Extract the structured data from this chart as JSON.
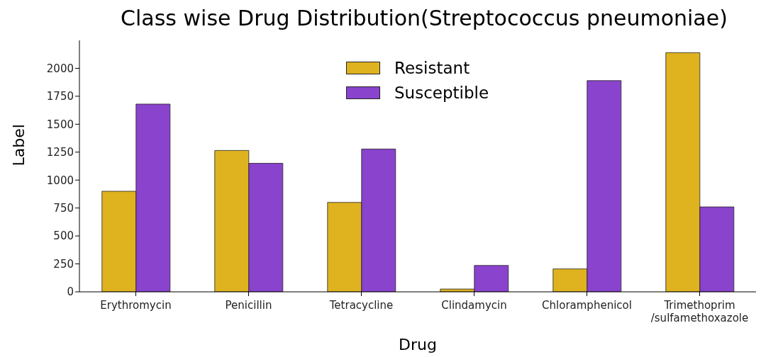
{
  "chart_data": {
    "type": "bar",
    "title": "Class wise Drug Distribution(Streptococcus pneumoniae)",
    "xlabel": "Drug",
    "ylabel": "Label",
    "categories": [
      "Erythromycin",
      "Penicillin",
      "Tetracycline",
      "Clindamycin",
      "Chloramphenicol",
      "Trimethoprim\n/sulfamethoxazole"
    ],
    "series": [
      {
        "name": "Resistant",
        "color": "#dfb31f",
        "values": [
          900,
          1265,
          800,
          25,
          205,
          2140
        ]
      },
      {
        "name": "Susceptible",
        "color": "#8a43cc",
        "values": [
          1680,
          1150,
          1278,
          236,
          1890,
          760
        ]
      }
    ],
    "ylim": [
      0,
      2250
    ],
    "yticks": [
      0,
      250,
      500,
      750,
      1000,
      1250,
      1500,
      1750,
      2000
    ],
    "grid": false,
    "legend": "top"
  }
}
